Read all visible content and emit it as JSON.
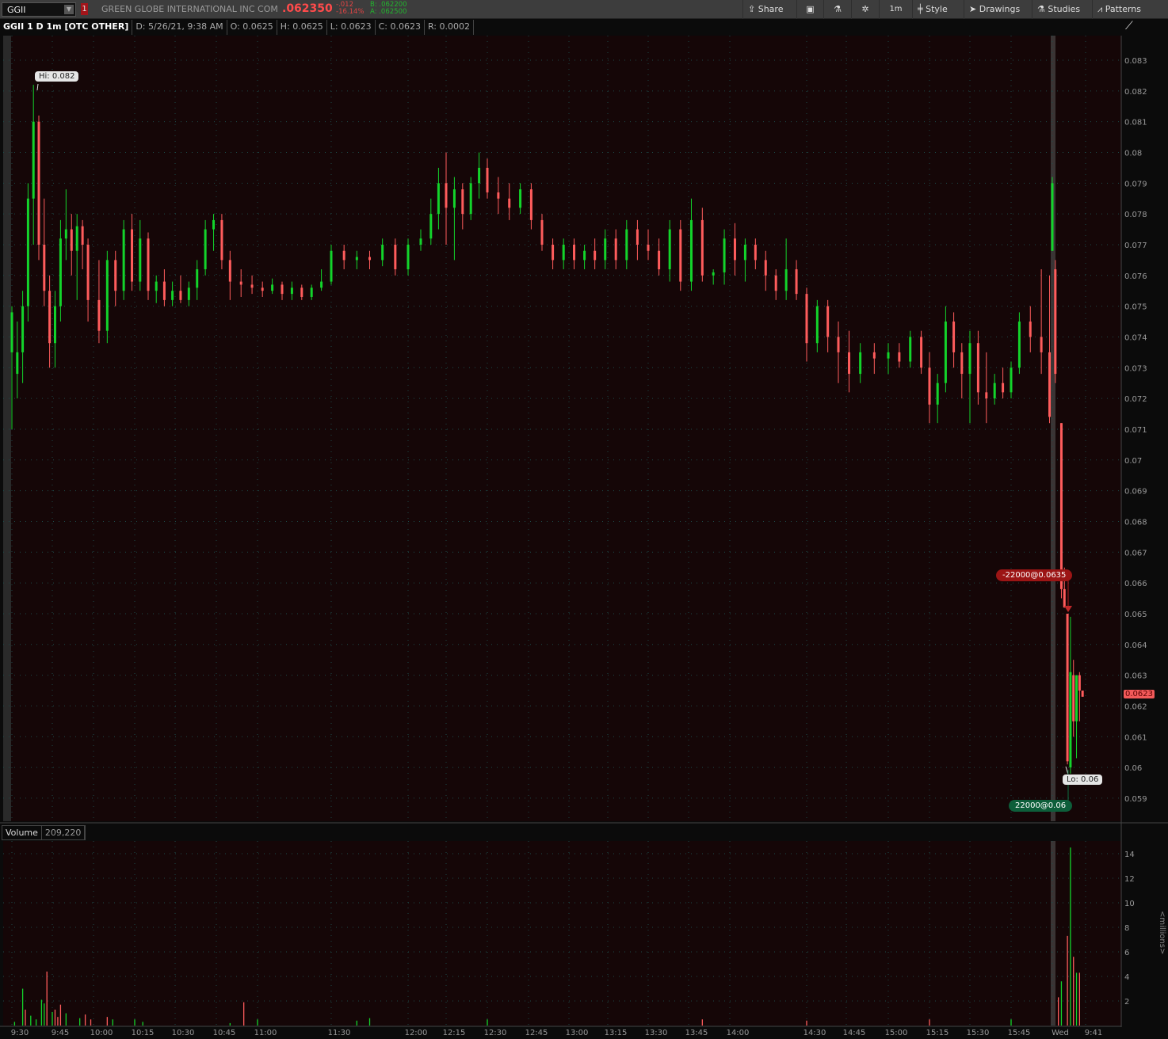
{
  "toolbar": {
    "symbol": "GGII",
    "alert_badge": "1",
    "company": "GREEN GLOBE INTERNATIONAL INC COM",
    "last": ".062350",
    "change": "-.012",
    "change_pct": "-16.14%",
    "bid": "B: .062200",
    "ask": "A: .062500",
    "buttons": {
      "share": "Share",
      "timeframe": "1m",
      "style": "Style",
      "drawings": "Drawings",
      "studies": "Studies",
      "patterns": "Patterns"
    }
  },
  "header": {
    "title": "GGII 1 D 1m [OTC OTHER]",
    "date": "D: 5/26/21, 9:38 AM",
    "open": "O: 0.0625",
    "high": "H: 0.0625",
    "low": "L: 0.0623",
    "close": "C: 0.0623",
    "range": "R: 0.0002"
  },
  "volume_header": {
    "label": "Volume",
    "value": "209,220"
  },
  "colors": {
    "up": "#13d42b",
    "down": "#ff5c5c",
    "background": "#150607",
    "grid": "#1d4a48"
  },
  "chart_data": [
    {
      "type": "candlestick",
      "ylim": [
        0.0585,
        0.0835
      ],
      "yticks": [
        "0.083",
        "0.082",
        "0.081",
        "0.08",
        "0.079",
        "0.078",
        "0.077",
        "0.076",
        "0.075",
        "0.074",
        "0.073",
        "0.072",
        "0.071",
        "0.07",
        "0.069",
        "0.068",
        "0.067",
        "0.066",
        "0.065",
        "0.064",
        "0.063",
        "0.062",
        "0.061",
        "0.06",
        "0.059"
      ],
      "xticks": [
        "9:30",
        "9:45",
        "10:00",
        "10:15",
        "10:30",
        "10:45",
        "11:00",
        "11:30",
        "12:00",
        "12:15",
        "12:30",
        "12:45",
        "13:00",
        "13:15",
        "13:30",
        "13:45",
        "14:00",
        "14:30",
        "14:45",
        "15:00",
        "15:15",
        "15:30",
        "15:45",
        "Wed",
        "9:41"
      ],
      "last_price_label": "0.0623",
      "hi_label": "Hi: 0.082",
      "lo_label": "Lo: 0.06",
      "orders": {
        "sell": "-22000@0.0635",
        "buy": "22000@0.06"
      },
      "candles": [
        [
          "9:30",
          0.0735,
          0.075,
          0.071,
          0.0748
        ],
        [
          "9:32",
          0.0728,
          0.0745,
          0.072,
          0.0735
        ],
        [
          "9:34",
          0.0735,
          0.0755,
          0.0725,
          0.075
        ],
        [
          "9:36",
          0.075,
          0.079,
          0.0745,
          0.0785
        ],
        [
          "9:38",
          0.0785,
          0.0822,
          0.077,
          0.081
        ],
        [
          "9:40",
          0.081,
          0.0812,
          0.0765,
          0.077
        ],
        [
          "9:42",
          0.077,
          0.0785,
          0.075,
          0.0755
        ],
        [
          "9:44",
          0.0755,
          0.076,
          0.073,
          0.0738
        ],
        [
          "9:46",
          0.0738,
          0.0755,
          0.073,
          0.075
        ],
        [
          "9:48",
          0.075,
          0.0778,
          0.0745,
          0.0772
        ],
        [
          "9:50",
          0.0772,
          0.0788,
          0.0765,
          0.0775
        ],
        [
          "9:52",
          0.0775,
          0.078,
          0.076,
          0.0768
        ],
        [
          "9:54",
          0.0768,
          0.078,
          0.0752,
          0.0776
        ],
        [
          "9:56",
          0.0776,
          0.0778,
          0.0762,
          0.077
        ],
        [
          "9:58",
          0.077,
          0.0772,
          0.0745,
          0.0752
        ],
        [
          "10:02",
          0.0752,
          0.0765,
          0.0738,
          0.0742
        ],
        [
          "10:05",
          0.0742,
          0.0768,
          0.0738,
          0.0765
        ],
        [
          "10:08",
          0.0765,
          0.0768,
          0.075,
          0.0755
        ],
        [
          "10:11",
          0.0755,
          0.0778,
          0.0752,
          0.0775
        ],
        [
          "10:14",
          0.0775,
          0.078,
          0.0755,
          0.0758
        ],
        [
          "10:17",
          0.0758,
          0.0778,
          0.0755,
          0.0772
        ],
        [
          "10:20",
          0.0772,
          0.0774,
          0.0752,
          0.0755
        ],
        [
          "10:23",
          0.0755,
          0.076,
          0.0751,
          0.0758
        ],
        [
          "10:26",
          0.0758,
          0.0762,
          0.075,
          0.0752
        ],
        [
          "10:29",
          0.0752,
          0.0758,
          0.075,
          0.0755
        ],
        [
          "10:32",
          0.0755,
          0.076,
          0.0751,
          0.0752
        ],
        [
          "10:35",
          0.0752,
          0.0758,
          0.075,
          0.0756
        ],
        [
          "10:38",
          0.0756,
          0.0765,
          0.0752,
          0.0762
        ],
        [
          "10:41",
          0.0762,
          0.0778,
          0.076,
          0.0775
        ],
        [
          "10:44",
          0.0775,
          0.078,
          0.0768,
          0.0778
        ],
        [
          "10:47",
          0.0778,
          0.078,
          0.0762,
          0.0765
        ],
        [
          "10:50",
          0.0765,
          0.0768,
          0.0752,
          0.0758
        ],
        [
          "10:54",
          0.0758,
          0.0762,
          0.0753,
          0.0757
        ],
        [
          "10:58",
          0.0757,
          0.076,
          0.0754,
          0.0756
        ],
        [
          "11:02",
          0.0756,
          0.0758,
          0.0753,
          0.0755
        ],
        [
          "11:06",
          0.0755,
          0.0759,
          0.0754,
          0.0757
        ],
        [
          "11:10",
          0.0757,
          0.0758,
          0.0752,
          0.0754
        ],
        [
          "11:14",
          0.0754,
          0.0758,
          0.0752,
          0.0756
        ],
        [
          "11:18",
          0.0756,
          0.0757,
          0.0752,
          0.0753
        ],
        [
          "11:22",
          0.0753,
          0.0757,
          0.0752,
          0.0756
        ],
        [
          "11:26",
          0.0756,
          0.0762,
          0.0755,
          0.0758
        ],
        [
          "11:30",
          0.0758,
          0.077,
          0.0757,
          0.0768
        ],
        [
          "11:35",
          0.0768,
          0.077,
          0.0762,
          0.0765
        ],
        [
          "11:40",
          0.0765,
          0.0768,
          0.0762,
          0.0766
        ],
        [
          "11:45",
          0.0766,
          0.0768,
          0.0762,
          0.0765
        ],
        [
          "11:50",
          0.0765,
          0.0772,
          0.0763,
          0.077
        ],
        [
          "11:55",
          0.077,
          0.0772,
          0.076,
          0.0762
        ],
        [
          "12:00",
          0.0762,
          0.0772,
          0.076,
          0.077
        ],
        [
          "12:05",
          0.077,
          0.0775,
          0.0768,
          0.0772
        ],
        [
          "12:09",
          0.0772,
          0.0785,
          0.077,
          0.078
        ],
        [
          "12:12",
          0.078,
          0.0795,
          0.0775,
          0.079
        ],
        [
          "12:15",
          0.079,
          0.08,
          0.077,
          0.0782
        ],
        [
          "12:18",
          0.0782,
          0.0792,
          0.0765,
          0.0788
        ],
        [
          "12:21",
          0.0788,
          0.079,
          0.0775,
          0.078
        ],
        [
          "12:24",
          0.078,
          0.0792,
          0.0778,
          0.079
        ],
        [
          "12:27",
          0.079,
          0.08,
          0.0785,
          0.0795
        ],
        [
          "12:30",
          0.0795,
          0.0798,
          0.0785,
          0.0787
        ],
        [
          "12:34",
          0.0787,
          0.0792,
          0.078,
          0.0785
        ],
        [
          "12:38",
          0.0785,
          0.079,
          0.0778,
          0.0782
        ],
        [
          "12:42",
          0.0782,
          0.079,
          0.078,
          0.0788
        ],
        [
          "12:46",
          0.0788,
          0.079,
          0.0775,
          0.0778
        ],
        [
          "12:50",
          0.0778,
          0.078,
          0.0768,
          0.077
        ],
        [
          "12:54",
          0.077,
          0.0772,
          0.0762,
          0.0765
        ],
        [
          "12:58",
          0.0765,
          0.0772,
          0.0762,
          0.077
        ],
        [
          "13:02",
          0.077,
          0.0772,
          0.0762,
          0.0765
        ],
        [
          "13:06",
          0.0765,
          0.077,
          0.0762,
          0.0768
        ],
        [
          "13:10",
          0.0768,
          0.0772,
          0.0762,
          0.0765
        ],
        [
          "13:14",
          0.0765,
          0.0775,
          0.0762,
          0.0772
        ],
        [
          "13:18",
          0.0772,
          0.0775,
          0.0762,
          0.0765
        ],
        [
          "13:22",
          0.0765,
          0.0778,
          0.0762,
          0.0775
        ],
        [
          "13:26",
          0.0775,
          0.0778,
          0.0765,
          0.077
        ],
        [
          "13:30",
          0.077,
          0.0775,
          0.0765,
          0.0768
        ],
        [
          "13:34",
          0.0768,
          0.0772,
          0.076,
          0.0762
        ],
        [
          "13:38",
          0.0762,
          0.0778,
          0.0758,
          0.0775
        ],
        [
          "13:42",
          0.0775,
          0.0778,
          0.0755,
          0.0758
        ],
        [
          "13:46",
          0.0758,
          0.0785,
          0.0755,
          0.0778
        ],
        [
          "13:50",
          0.0778,
          0.0782,
          0.0758,
          0.076
        ],
        [
          "13:54",
          0.076,
          0.0762,
          0.0757,
          0.0761
        ],
        [
          "13:58",
          0.0761,
          0.0775,
          0.0757,
          0.0772
        ],
        [
          "14:02",
          0.0772,
          0.0777,
          0.076,
          0.0765
        ],
        [
          "14:06",
          0.0765,
          0.0772,
          0.0758,
          0.077
        ],
        [
          "14:10",
          0.077,
          0.0772,
          0.0762,
          0.0765
        ],
        [
          "14:14",
          0.0765,
          0.0768,
          0.0755,
          0.076
        ],
        [
          "14:18",
          0.076,
          0.0762,
          0.0752,
          0.0755
        ],
        [
          "14:22",
          0.0755,
          0.0772,
          0.0752,
          0.0762
        ],
        [
          "14:26",
          0.0762,
          0.0765,
          0.0752,
          0.0754
        ],
        [
          "14:30",
          0.0754,
          0.0756,
          0.0732,
          0.0738
        ],
        [
          "14:34",
          0.0738,
          0.0752,
          0.0735,
          0.075
        ],
        [
          "14:38",
          0.075,
          0.0752,
          0.0735,
          0.074
        ],
        [
          "14:42",
          0.074,
          0.0745,
          0.0725,
          0.0735
        ],
        [
          "14:46",
          0.0735,
          0.0742,
          0.0722,
          0.0728
        ],
        [
          "14:50",
          0.0728,
          0.0738,
          0.0725,
          0.0735
        ],
        [
          "14:55",
          0.0735,
          0.0738,
          0.0728,
          0.0733
        ],
        [
          "15:00",
          0.0733,
          0.0738,
          0.0728,
          0.0735
        ],
        [
          "15:04",
          0.0735,
          0.0738,
          0.073,
          0.0732
        ],
        [
          "15:08",
          0.0732,
          0.0742,
          0.073,
          0.074
        ],
        [
          "15:12",
          0.074,
          0.0742,
          0.0728,
          0.073
        ],
        [
          "15:15",
          0.073,
          0.0735,
          0.0712,
          0.0718
        ],
        [
          "15:18",
          0.0718,
          0.0728,
          0.0712,
          0.0725
        ],
        [
          "15:21",
          0.0725,
          0.075,
          0.0722,
          0.0745
        ],
        [
          "15:24",
          0.0745,
          0.0748,
          0.073,
          0.0735
        ],
        [
          "15:27",
          0.0735,
          0.0738,
          0.072,
          0.0728
        ],
        [
          "15:30",
          0.0728,
          0.0742,
          0.0712,
          0.0738
        ],
        [
          "15:33",
          0.0738,
          0.0742,
          0.0718,
          0.0722
        ],
        [
          "15:36",
          0.0722,
          0.0735,
          0.0712,
          0.072
        ],
        [
          "15:39",
          0.072,
          0.0728,
          0.0718,
          0.0725
        ],
        [
          "15:42",
          0.0725,
          0.073,
          0.072,
          0.0722
        ],
        [
          "15:45",
          0.0722,
          0.0732,
          0.072,
          0.073
        ],
        [
          "15:48",
          0.073,
          0.0748,
          0.0728,
          0.0745
        ],
        [
          "15:52",
          0.0745,
          0.075,
          0.0735,
          0.074
        ],
        [
          "15:56",
          0.074,
          0.0762,
          0.0728,
          0.0735
        ],
        [
          "15:59",
          0.0735,
          0.076,
          0.0712,
          0.0714
        ],
        [
          "Wed 9:30",
          0.0768,
          0.0792,
          0.0768,
          0.079
        ],
        [
          "Wed 9:31",
          0.0762,
          0.0765,
          0.0725,
          0.0728
        ],
        [
          "Wed 9:33",
          0.0712,
          0.0712,
          0.0655,
          0.0658
        ],
        [
          "Wed 9:34",
          0.0658,
          0.0665,
          0.0652,
          0.0652
        ],
        [
          "Wed 9:35",
          0.065,
          0.065,
          0.0601,
          0.0602
        ],
        [
          "Wed 9:36",
          0.06,
          0.0649,
          0.0598,
          0.0631
        ],
        [
          "Wed 9:37",
          0.063,
          0.0635,
          0.061,
          0.0615
        ],
        [
          "Wed 9:38",
          0.0615,
          0.063,
          0.0603,
          0.063
        ],
        [
          "Wed 9:39",
          0.063,
          0.0631,
          0.0615,
          0.0625
        ],
        [
          "Wed 9:40",
          0.0625,
          0.0625,
          0.0623,
          0.0623
        ]
      ]
    },
    {
      "type": "bar",
      "title": "Volume",
      "ylabel": "<millions>",
      "ylim": [
        0,
        15
      ],
      "yticks": [
        "2",
        "4",
        "6",
        "8",
        "10",
        "12",
        "14"
      ],
      "bars": [
        [
          "9:31",
          0.3,
          "up"
        ],
        [
          "9:34",
          3.0,
          "up"
        ],
        [
          "9:35",
          1.3,
          "down"
        ],
        [
          "9:37",
          0.8,
          "up"
        ],
        [
          "9:39",
          0.5,
          "up"
        ],
        [
          "9:41",
          2.1,
          "up"
        ],
        [
          "9:42",
          1.8,
          "up"
        ],
        [
          "9:43",
          4.4,
          "down"
        ],
        [
          "9:45",
          1.1,
          "up"
        ],
        [
          "9:46",
          1.3,
          "down"
        ],
        [
          "9:47",
          0.7,
          "down"
        ],
        [
          "9:48",
          1.7,
          "down"
        ],
        [
          "9:50",
          1.0,
          "up"
        ],
        [
          "9:55",
          0.6,
          "up"
        ],
        [
          "9:57",
          0.9,
          "down"
        ],
        [
          "9:59",
          0.5,
          "down"
        ],
        [
          "10:05",
          0.7,
          "down"
        ],
        [
          "10:07",
          0.5,
          "up"
        ],
        [
          "10:15",
          0.5,
          "up"
        ],
        [
          "10:18",
          0.3,
          "up"
        ],
        [
          "10:50",
          0.2,
          "up"
        ],
        [
          "10:55",
          1.9,
          "down"
        ],
        [
          "11:00",
          0.5,
          "up"
        ],
        [
          "11:40",
          0.4,
          "up"
        ],
        [
          "11:45",
          0.6,
          "up"
        ],
        [
          "12:30",
          0.5,
          "up"
        ],
        [
          "13:50",
          0.5,
          "down"
        ],
        [
          "14:30",
          0.4,
          "down"
        ],
        [
          "15:15",
          0.5,
          "down"
        ],
        [
          "15:45",
          0.5,
          "up"
        ],
        [
          "Wed 9:32",
          2.3,
          "down"
        ],
        [
          "Wed 9:33",
          3.6,
          "up"
        ],
        [
          "Wed 9:35",
          7.3,
          "down"
        ],
        [
          "Wed 9:36",
          14.5,
          "up"
        ],
        [
          "Wed 9:37",
          5.6,
          "down"
        ],
        [
          "Wed 9:38",
          4.3,
          "up"
        ],
        [
          "Wed 9:39",
          4.3,
          "down"
        ]
      ]
    }
  ]
}
